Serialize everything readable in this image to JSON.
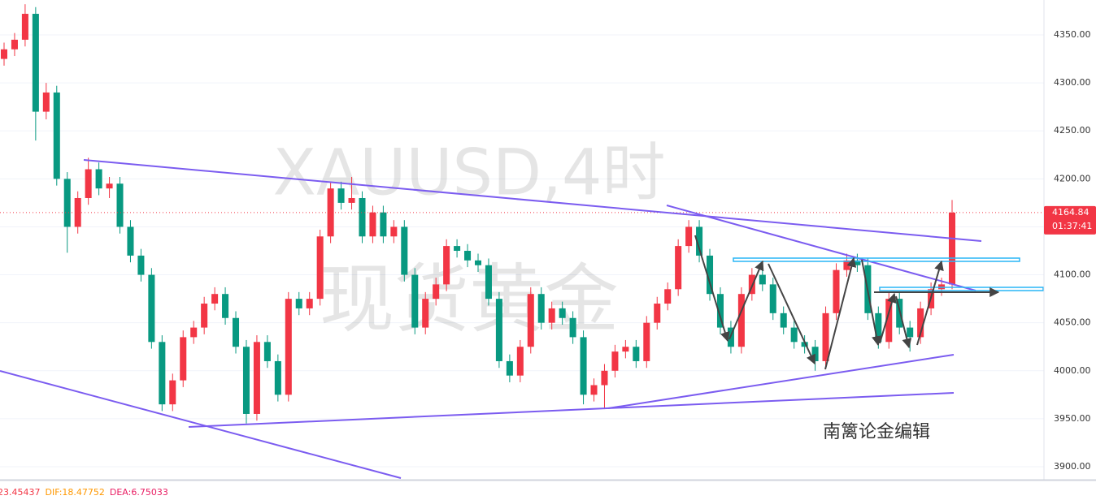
{
  "chart_data": {
    "type": "candlestick",
    "watermark_symbol": "XAUUSD,4时",
    "watermark_name": "现货黄金",
    "annotation": "南篱论金编辑",
    "up_color": "#f23645",
    "down_color": "#089981",
    "ylim": [
      3887.3,
      4386.4
    ],
    "yticks": [
      {
        "value": 3900,
        "label": "3900.00"
      },
      {
        "value": 3950,
        "label": "3950.00"
      },
      {
        "value": 4000,
        "label": "4000.00"
      },
      {
        "value": 4050,
        "label": "4050.00"
      },
      {
        "value": 4100,
        "label": "4100.00"
      },
      {
        "value": 4150,
        "label": "4150.00"
      },
      {
        "value": 4200,
        "label": "4200.00"
      },
      {
        "value": 4250,
        "label": "4250.00"
      },
      {
        "value": 4300,
        "label": "4300.00"
      },
      {
        "value": 4350,
        "label": "4350.00"
      }
    ],
    "grid": true,
    "last_price": 4164.84,
    "countdown": "01:37:41",
    "indicator": {
      "macd": "23.45437",
      "dif": "DIF:18.47752",
      "dea": "DEA:6.75033"
    },
    "candles": [
      [
        4325,
        4342,
        4318,
        4335
      ],
      [
        4335,
        4352,
        4328,
        4345
      ],
      [
        4345,
        4382,
        4338,
        4372
      ],
      [
        4372,
        4379,
        4240,
        4270
      ],
      [
        4270,
        4300,
        4262,
        4290
      ],
      [
        4290,
        4297,
        4193,
        4200
      ],
      [
        4200,
        4207,
        4123,
        4150
      ],
      [
        4150,
        4187,
        4143,
        4180
      ],
      [
        4180,
        4222,
        4173,
        4210
      ],
      [
        4210,
        4217,
        4183,
        4190
      ],
      [
        4190,
        4202,
        4180,
        4195
      ],
      [
        4195,
        4202,
        4143,
        4150
      ],
      [
        4150,
        4157,
        4113,
        4120
      ],
      [
        4120,
        4127,
        4093,
        4100
      ],
      [
        4100,
        4107,
        4023,
        4030
      ],
      [
        4030,
        4037,
        3958,
        3965
      ],
      [
        3965,
        3997,
        3958,
        3990
      ],
      [
        3990,
        4042,
        3983,
        4035
      ],
      [
        4035,
        4052,
        4028,
        4045
      ],
      [
        4045,
        4077,
        4038,
        4070
      ],
      [
        4070,
        4087,
        4063,
        4080
      ],
      [
        4080,
        4087,
        4048,
        4055
      ],
      [
        4055,
        4062,
        4018,
        4025
      ],
      [
        4025,
        4032,
        3945,
        3955
      ],
      [
        3955,
        4037,
        3948,
        4030
      ],
      [
        4030,
        4037,
        4003,
        4010
      ],
      [
        4010,
        4017,
        3968,
        3975
      ],
      [
        3975,
        4082,
        3968,
        4075
      ],
      [
        4075,
        4082,
        4058,
        4065
      ],
      [
        4065,
        4082,
        4058,
        4075
      ],
      [
        4075,
        4147,
        4068,
        4140
      ],
      [
        4140,
        4197,
        4133,
        4190
      ],
      [
        4190,
        4197,
        4168,
        4175
      ],
      [
        4175,
        4202,
        4168,
        4180
      ],
      [
        4180,
        4187,
        4133,
        4140
      ],
      [
        4140,
        4172,
        4133,
        4165
      ],
      [
        4165,
        4172,
        4133,
        4140
      ],
      [
        4140,
        4157,
        4133,
        4150
      ],
      [
        4150,
        4157,
        4093,
        4100
      ],
      [
        4100,
        4107,
        4038,
        4045
      ],
      [
        4045,
        4082,
        4038,
        4075
      ],
      [
        4075,
        4097,
        4068,
        4090
      ],
      [
        4090,
        4137,
        4083,
        4130
      ],
      [
        4130,
        4137,
        4118,
        4125
      ],
      [
        4125,
        4132,
        4108,
        4115
      ],
      [
        4115,
        4122,
        4103,
        4110
      ],
      [
        4110,
        4117,
        4068,
        4075
      ],
      [
        4075,
        4082,
        4003,
        4010
      ],
      [
        4010,
        4017,
        3988,
        3995
      ],
      [
        3995,
        4032,
        3988,
        4025
      ],
      [
        4025,
        4087,
        4018,
        4080
      ],
      [
        4080,
        4087,
        4043,
        4050
      ],
      [
        4050,
        4072,
        4043,
        4065
      ],
      [
        4065,
        4072,
        4048,
        4055
      ],
      [
        4055,
        4062,
        4028,
        4035
      ],
      [
        4035,
        4042,
        3965,
        3975
      ],
      [
        3975,
        3992,
        3968,
        3985
      ],
      [
        3985,
        4007,
        3960,
        4000
      ],
      [
        4000,
        4027,
        3993,
        4020
      ],
      [
        4020,
        4032,
        4013,
        4025
      ],
      [
        4025,
        4032,
        4003,
        4010
      ],
      [
        4010,
        4057,
        4003,
        4050
      ],
      [
        4050,
        4077,
        4043,
        4070
      ],
      [
        4070,
        4092,
        4063,
        4085
      ],
      [
        4085,
        4137,
        4078,
        4130
      ],
      [
        4130,
        4157,
        4123,
        4150
      ],
      [
        4150,
        4157,
        4113,
        4120
      ],
      [
        4120,
        4127,
        4073,
        4080
      ],
      [
        4080,
        4087,
        4038,
        4045
      ],
      [
        4045,
        4052,
        4018,
        4025
      ],
      [
        4025,
        4087,
        4018,
        4080
      ],
      [
        4080,
        4107,
        4073,
        4100
      ],
      [
        4100,
        4107,
        4083,
        4090
      ],
      [
        4090,
        4097,
        4053,
        4060
      ],
      [
        4060,
        4067,
        4038,
        4045
      ],
      [
        4045,
        4052,
        4023,
        4030
      ],
      [
        4030,
        4037,
        4018,
        4025
      ],
      [
        4025,
        4032,
        4000,
        4010
      ],
      [
        4010,
        4067,
        4003,
        4060
      ],
      [
        4060,
        4112,
        4053,
        4105
      ],
      [
        4105,
        4122,
        4098,
        4115
      ],
      [
        4115,
        4122,
        4103,
        4110
      ],
      [
        4110,
        4117,
        4053,
        4060
      ],
      [
        4060,
        4067,
        4023,
        4030
      ],
      [
        4030,
        4082,
        4023,
        4075
      ],
      [
        4075,
        4082,
        4038,
        4045
      ],
      [
        4045,
        4052,
        4020,
        4035
      ],
      [
        4035,
        4072,
        4028,
        4065
      ],
      [
        4065,
        4092,
        4058,
        4085
      ],
      [
        4085,
        4097,
        4078,
        4090
      ],
      [
        4090,
        4178,
        4085,
        4164.84
      ]
    ]
  }
}
